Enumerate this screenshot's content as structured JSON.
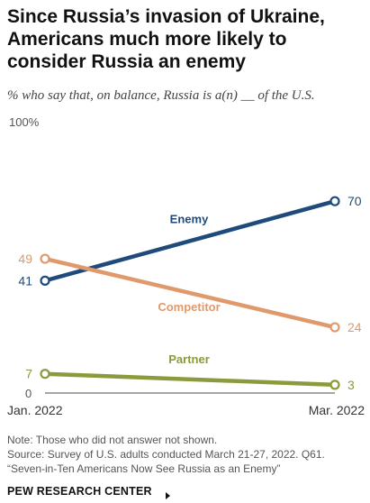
{
  "title": "Since Russia’s invasion of Ukraine, Americans much more likely to consider Russia an enemy",
  "subtitle": "% who say that, on balance, Russia is a(n) __ of the U.S.",
  "chart_data": {
    "type": "line",
    "x": [
      "Jan. 2022",
      "Mar. 2022"
    ],
    "ylim": [
      0,
      100
    ],
    "y_ticks": [
      "100%",
      "0"
    ],
    "grid": false,
    "series": [
      {
        "name": "Enemy",
        "values": [
          41,
          70
        ],
        "color": "#1f4a7c"
      },
      {
        "name": "Competitor",
        "values": [
          49,
          24
        ],
        "color": "#e0996a"
      },
      {
        "name": "Partner",
        "values": [
          7,
          3
        ],
        "color": "#8a9a3c"
      }
    ]
  },
  "notes": [
    "Note: Those who did not answer not shown.",
    "Source: Survey of U.S. adults conducted March 21-27, 2022. Q61.",
    "“Seven-in-Ten Americans Now See Russia as an Enemy”"
  ],
  "source_org": "PEW RESEARCH CENTER"
}
